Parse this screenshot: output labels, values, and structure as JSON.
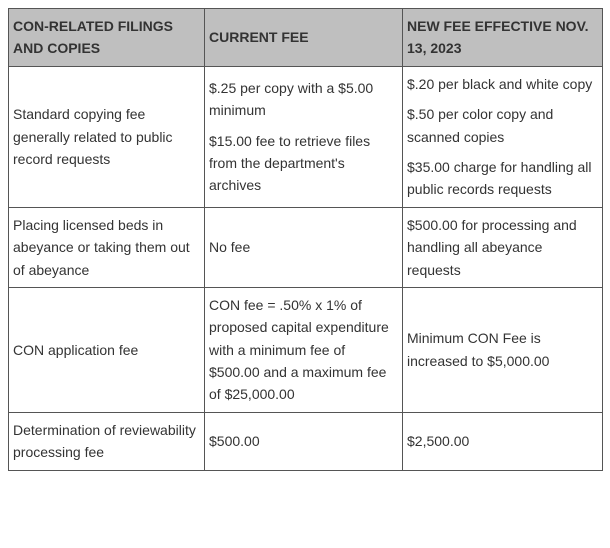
{
  "table": {
    "headers": {
      "col1": "CON-RELATED FILINGS AND COPIES",
      "col2": "CURRENT FEE",
      "col3": "NEW FEE EFFECTIVE NOV. 13, 2023"
    },
    "rows": [
      {
        "filing": "Standard copying fee generally related to public record requests",
        "current_p1": "$.25 per copy with a $5.00 minimum",
        "current_p2": "$15.00 fee to retrieve files from the department's archives",
        "new_p1": "$.20 per black and white copy",
        "new_p2": "$.50 per color copy and scanned copies",
        "new_p3": "$35.00 charge for handling all public records requests"
      },
      {
        "filing": "Placing licensed beds in abeyance or taking them out of abeyance",
        "current": "No fee",
        "new": "$500.00 for processing and handling all abeyance requests"
      },
      {
        "filing": "CON application fee",
        "current": "CON fee = .50% x 1% of proposed capital expenditure with a minimum fee of $500.00 and a maximum fee of $25,000.00",
        "new": "Minimum CON Fee is increased to $5,000.00"
      },
      {
        "filing": "Determination of reviewability processing fee",
        "current": "$500.00",
        "new": "$2,500.00"
      }
    ],
    "colors": {
      "header_bg": "#bfbfbf",
      "border": "#555555",
      "text": "#333333",
      "background": "#ffffff"
    },
    "font_size": 14
  }
}
